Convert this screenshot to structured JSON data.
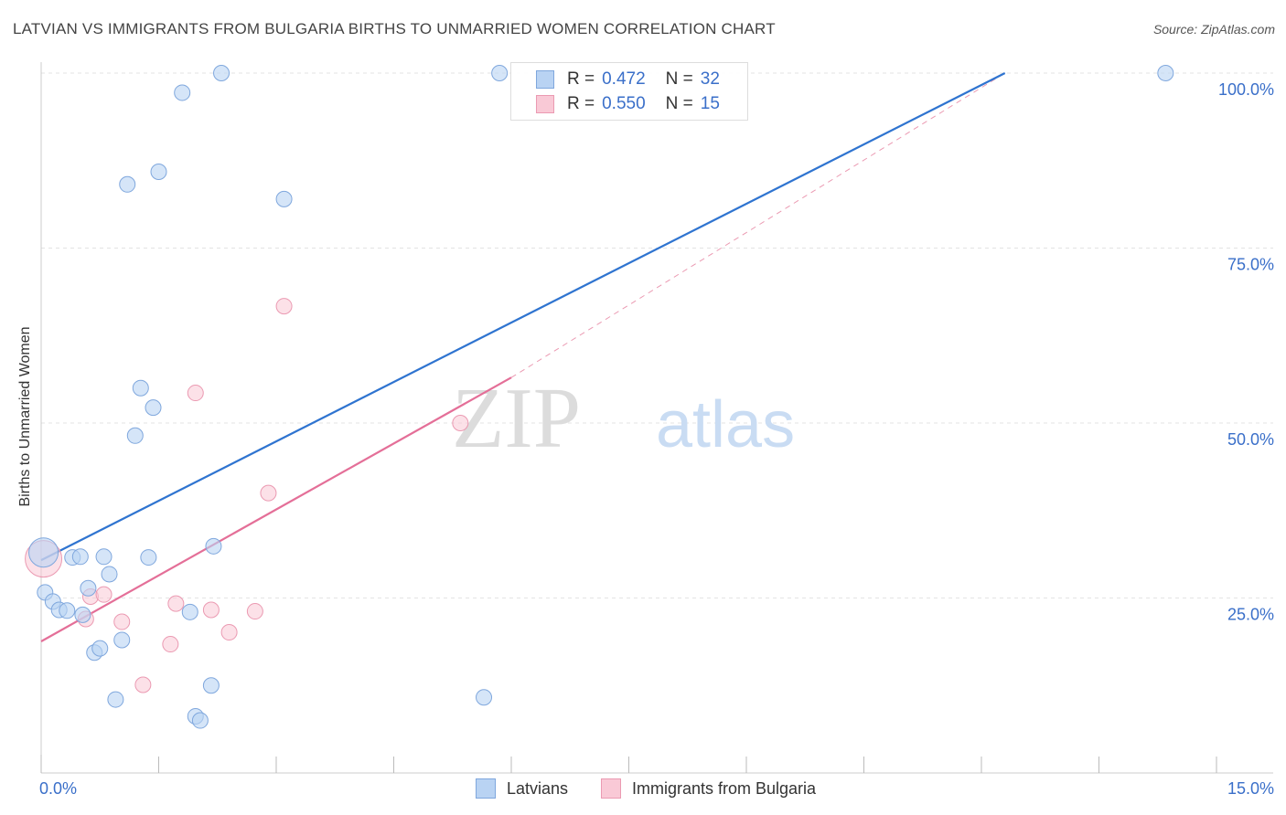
{
  "header": {
    "title": "LATVIAN VS IMMIGRANTS FROM BULGARIA BIRTHS TO UNMARRIED WOMEN CORRELATION CHART",
    "source": "Source: ZipAtlas.com"
  },
  "colors": {
    "blue_fill": "#b9d3f3",
    "blue_stroke": "#7fa7dd",
    "blue_line": "#2f74d0",
    "pink_fill": "#f9c9d6",
    "pink_stroke": "#eb9ab2",
    "pink_line": "#e46f98",
    "tick_label": "#3a6fc9"
  },
  "legend": {
    "rows": [
      {
        "r_label": "R =",
        "r_value": "0.472",
        "n_label": "N =",
        "n_value": "32"
      },
      {
        "r_label": "R =",
        "r_value": "0.550",
        "n_label": "N =",
        "n_value": "15"
      }
    ]
  },
  "bottom_legend": {
    "series1": "Latvians",
    "series2": "Immigrants from Bulgaria"
  },
  "chart_data": {
    "type": "scatter",
    "title": "LATVIAN VS IMMIGRANTS FROM BULGARIA BIRTHS TO UNMARRIED WOMEN CORRELATION CHART",
    "xlabel": "",
    "ylabel": "Births to Unmarried Women",
    "xlim": [
      0,
      15
    ],
    "ylim": [
      0,
      100
    ],
    "x_tick_labels": [
      "0.0%",
      "15.0%"
    ],
    "y_ticks": [
      25,
      50,
      75,
      100
    ],
    "y_tick_labels": [
      "25.0%",
      "50.0%",
      "75.0%",
      "100.0%"
    ],
    "watermark": {
      "part1": "ZIP",
      "part2": "atlas"
    },
    "series": [
      {
        "name": "Latvians",
        "r": 0.472,
        "n": 32,
        "trend": {
          "x": [
            0,
            12.3
          ],
          "y": [
            30.4,
            100
          ]
        },
        "points": [
          {
            "x": 0.03,
            "y": 31.5,
            "size": "large"
          },
          {
            "x": 0.05,
            "y": 25.8
          },
          {
            "x": 0.15,
            "y": 24.5
          },
          {
            "x": 0.23,
            "y": 23.3
          },
          {
            "x": 0.33,
            "y": 23.2
          },
          {
            "x": 0.4,
            "y": 30.8
          },
          {
            "x": 0.5,
            "y": 30.9
          },
          {
            "x": 0.53,
            "y": 22.6
          },
          {
            "x": 0.6,
            "y": 26.4
          },
          {
            "x": 0.68,
            "y": 17.2
          },
          {
            "x": 0.75,
            "y": 17.8
          },
          {
            "x": 0.8,
            "y": 30.9
          },
          {
            "x": 0.87,
            "y": 28.4
          },
          {
            "x": 0.95,
            "y": 10.5
          },
          {
            "x": 1.03,
            "y": 19.0
          },
          {
            "x": 1.1,
            "y": 84.1
          },
          {
            "x": 1.2,
            "y": 48.2
          },
          {
            "x": 1.27,
            "y": 55.0
          },
          {
            "x": 1.37,
            "y": 30.8
          },
          {
            "x": 1.43,
            "y": 52.2
          },
          {
            "x": 1.5,
            "y": 85.9
          },
          {
            "x": 1.8,
            "y": 97.2
          },
          {
            "x": 1.9,
            "y": 23.0
          },
          {
            "x": 1.97,
            "y": 8.1
          },
          {
            "x": 2.03,
            "y": 7.5
          },
          {
            "x": 2.17,
            "y": 12.5
          },
          {
            "x": 2.2,
            "y": 32.4
          },
          {
            "x": 2.3,
            "y": 100.0
          },
          {
            "x": 3.1,
            "y": 82.0
          },
          {
            "x": 5.65,
            "y": 10.8
          },
          {
            "x": 5.85,
            "y": 100.0
          },
          {
            "x": 14.35,
            "y": 100.0
          }
        ]
      },
      {
        "name": "Immigrants from Bulgaria",
        "r": 0.55,
        "n": 15,
        "trend": {
          "x": [
            0,
            6.0
          ],
          "y": [
            18.8,
            56.5
          ]
        },
        "trend_dashed": {
          "x": [
            6.0,
            12.3
          ],
          "y": [
            56.5,
            100
          ]
        },
        "points": [
          {
            "x": 0.03,
            "y": 30.6,
            "size": "large"
          },
          {
            "x": 0.63,
            "y": 25.2
          },
          {
            "x": 0.57,
            "y": 22.0
          },
          {
            "x": 0.8,
            "y": 25.5
          },
          {
            "x": 1.03,
            "y": 21.6
          },
          {
            "x": 1.3,
            "y": 12.6
          },
          {
            "x": 1.65,
            "y": 18.4
          },
          {
            "x": 1.72,
            "y": 24.2
          },
          {
            "x": 1.97,
            "y": 54.3
          },
          {
            "x": 2.17,
            "y": 23.3
          },
          {
            "x": 2.4,
            "y": 20.1
          },
          {
            "x": 2.73,
            "y": 23.1
          },
          {
            "x": 2.9,
            "y": 40.0
          },
          {
            "x": 3.1,
            "y": 66.7
          },
          {
            "x": 5.35,
            "y": 50.0
          }
        ]
      }
    ]
  }
}
